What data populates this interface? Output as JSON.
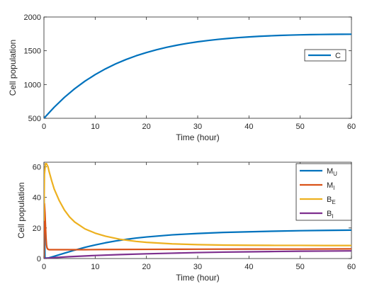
{
  "chart_data": [
    {
      "type": "line",
      "title": "",
      "xlabel": "Time (hour)",
      "ylabel": "Cell population",
      "xlim": [
        0,
        60
      ],
      "ylim": [
        500,
        2000
      ],
      "xticks": [
        0,
        10,
        20,
        30,
        40,
        50,
        60
      ],
      "yticks": [
        500,
        1000,
        1500,
        2000
      ],
      "grid": false,
      "legend_position": "right",
      "series": [
        {
          "name": "C",
          "color": "#0072BD",
          "x": [
            0,
            2,
            4,
            6,
            8,
            10,
            12,
            14,
            16,
            18,
            20,
            22,
            24,
            26,
            28,
            30,
            32,
            34,
            36,
            38,
            40,
            42,
            44,
            46,
            48,
            50,
            52,
            54,
            56,
            58,
            60
          ],
          "y": [
            500,
            664,
            810,
            938,
            1050,
            1147,
            1232,
            1306,
            1370,
            1426,
            1474,
            1516,
            1552,
            1583,
            1610,
            1633,
            1652,
            1669,
            1683,
            1695,
            1705,
            1714,
            1721,
            1727,
            1732,
            1736,
            1739,
            1741,
            1743,
            1744,
            1745
          ]
        }
      ]
    },
    {
      "type": "line",
      "title": "",
      "xlabel": "Time (hour)",
      "ylabel": "Cell population",
      "xlim": [
        0,
        60
      ],
      "ylim": [
        0,
        63
      ],
      "xticks": [
        0,
        10,
        20,
        30,
        40,
        50,
        60
      ],
      "yticks": [
        0,
        20,
        40,
        60
      ],
      "grid": false,
      "legend_position": "top-right",
      "series": [
        {
          "name": "M",
          "subscript": "U",
          "color": "#0072BD",
          "x": [
            0,
            0.2,
            0.5,
            1,
            2,
            4,
            6,
            8,
            10,
            12,
            14,
            16,
            18,
            20,
            25,
            30,
            35,
            40,
            45,
            50,
            55,
            60
          ],
          "y": [
            49,
            0.5,
            0.3,
            0.5,
            1.5,
            3.5,
            5.5,
            7.3,
            8.9,
            10.3,
            11.5,
            12.5,
            13.4,
            14.1,
            15.5,
            16.4,
            17.1,
            17.5,
            17.9,
            18.2,
            18.4,
            18.6
          ]
        },
        {
          "name": "M",
          "subscript": "I",
          "color": "#D95319",
          "x": [
            0,
            0.1,
            0.2,
            0.3,
            0.4,
            0.5,
            0.6,
            0.8,
            1,
            2,
            4,
            8,
            12,
            20,
            30,
            40,
            50,
            60
          ],
          "y": [
            0,
            36,
            30,
            22,
            14,
            9,
            7,
            6,
            5.8,
            5.8,
            5.8,
            5.8,
            5.9,
            6.0,
            6.1,
            6.2,
            6.2,
            6.3
          ]
        },
        {
          "name": "B",
          "subscript": "E",
          "color": "#EDB120",
          "x": [
            0,
            0.1,
            0.3,
            0.5,
            0.8,
            1,
            1.5,
            2,
            3,
            4,
            5,
            6,
            8,
            10,
            12,
            15,
            18,
            20,
            25,
            30,
            35,
            40,
            45,
            50,
            55,
            60
          ],
          "y": [
            25,
            55,
            62,
            62,
            60,
            57,
            51,
            45.5,
            37.8,
            31.7,
            27.2,
            23.9,
            19.4,
            16.6,
            14.6,
            12.5,
            11.2,
            10.6,
            9.6,
            9.1,
            8.8,
            8.7,
            8.6,
            8.6,
            8.5,
            8.5
          ]
        },
        {
          "name": "B",
          "subscript": "I",
          "color": "#7E2F8E",
          "x": [
            0,
            1,
            2,
            5,
            10,
            15,
            20,
            25,
            30,
            35,
            40,
            45,
            50,
            55,
            60
          ],
          "y": [
            0,
            0.3,
            0.6,
            1.2,
            2.0,
            2.6,
            3.1,
            3.5,
            3.9,
            4.2,
            4.4,
            4.6,
            4.8,
            4.9,
            5.0
          ]
        }
      ]
    }
  ]
}
